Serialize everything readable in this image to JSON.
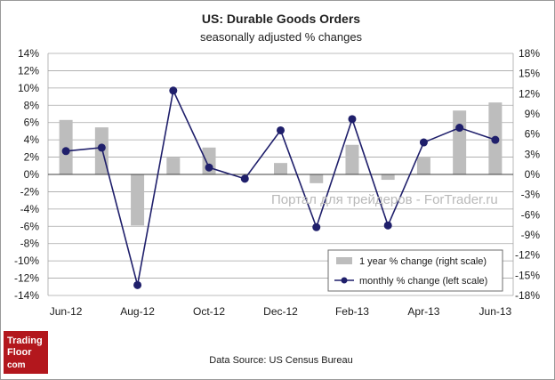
{
  "chart_data": {
    "type": "bar+line",
    "title": "US: Durable Goods Orders",
    "subtitle": "seasonally  adjusted % changes",
    "categories": [
      "Jun-12",
      "Jul-12",
      "Aug-12",
      "Sep-12",
      "Oct-12",
      "Nov-12",
      "Dec-12",
      "Jan-13",
      "Feb-13",
      "Mar-13",
      "Apr-13",
      "May-13",
      "Jun-13"
    ],
    "x_tick_labels": [
      "Jun-12",
      "",
      "Aug-12",
      "",
      "Oct-12",
      "",
      "Dec-12",
      "",
      "Feb-13",
      "",
      "Apr-13",
      "",
      "Jun-13"
    ],
    "series": [
      {
        "name": "1 year % change (right scale)",
        "type": "bar",
        "axis": "right",
        "color": "#bdbdbd",
        "values": [
          8.1,
          7.0,
          -7.6,
          2.5,
          4.0,
          0.0,
          1.7,
          -1.3,
          4.4,
          -0.8,
          2.5,
          9.5,
          10.7
        ]
      },
      {
        "name": "monthly % change (left scale)",
        "type": "line",
        "axis": "left",
        "color": "#1f1f6b",
        "values": [
          2.7,
          3.1,
          -12.8,
          9.7,
          0.8,
          -0.5,
          5.1,
          -6.1,
          6.4,
          -5.9,
          3.7,
          5.4,
          4.0
        ]
      }
    ],
    "left_axis": {
      "min": -14,
      "max": 14,
      "step": 2,
      "ticks": [
        "14%",
        "12%",
        "10%",
        "8%",
        "6%",
        "4%",
        "2%",
        "0%",
        "-2%",
        "-4%",
        "-6%",
        "-8%",
        "-10%",
        "-12%",
        "-14%"
      ]
    },
    "right_axis": {
      "min": -18,
      "max": 18,
      "step": 3,
      "ticks": [
        "18%",
        "15%",
        "12%",
        "9%",
        "6%",
        "3%",
        "0%",
        "-3%",
        "-6%",
        "-9%",
        "-12%",
        "-15%",
        "-18%"
      ]
    },
    "grid": true,
    "legend": {
      "position": "bottom-right"
    }
  },
  "watermark": "Портал для трейдеров - ForTrader.ru",
  "source": "Data Source: US Census Bureau",
  "logo": {
    "line1": "Trading",
    "line2": "Floor",
    "line3": "com"
  },
  "colors": {
    "bar": "#bdbdbd",
    "line": "#1f1f6b",
    "grid": "#a6a6a6",
    "logo_bg": "#b3171d"
  }
}
